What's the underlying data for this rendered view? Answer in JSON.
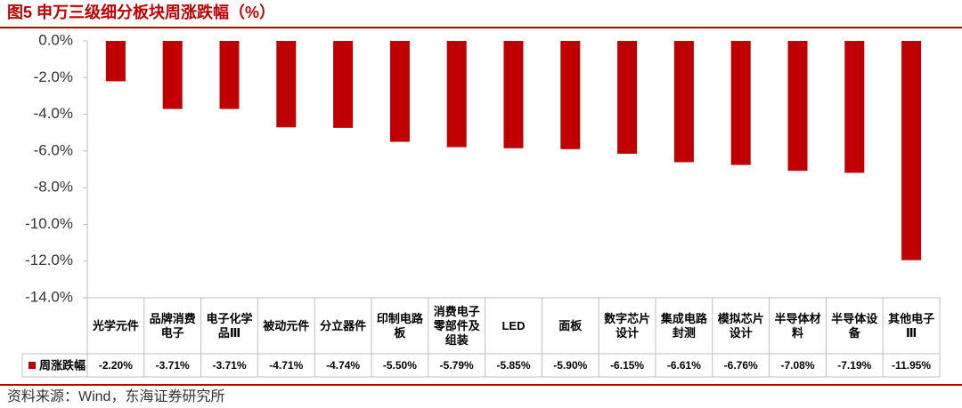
{
  "chart_data": {
    "type": "bar",
    "title": "图5 申万三级细分板块周涨跌幅（%）",
    "source": "资料来源：Wind，东海证券研究所",
    "categories": [
      "光学元件",
      "品牌消费电子",
      "电子化学品Ⅲ",
      "被动元件",
      "分立器件",
      "印制电路板",
      "消费电子零部件及组装",
      "LED",
      "面板",
      "数字芯片设计",
      "集成电路封测",
      "模拟芯片设计",
      "半导体材料",
      "半导体设备",
      "其他电子Ⅲ"
    ],
    "series": [
      {
        "name": "周涨跌幅",
        "color": "#c00000",
        "values": [
          -2.2,
          -3.71,
          -3.71,
          -4.71,
          -4.74,
          -5.5,
          -5.79,
          -5.85,
          -5.9,
          -6.15,
          -6.61,
          -6.76,
          -7.08,
          -7.19,
          -11.95
        ],
        "value_labels": [
          "-2.20%",
          "-3.71%",
          "-3.71%",
          "-4.71%",
          "-4.74%",
          "-5.50%",
          "-5.79%",
          "-5.85%",
          "-5.90%",
          "-6.15%",
          "-6.61%",
          "-6.76%",
          "-7.08%",
          "-7.19%",
          "-11.95%"
        ]
      }
    ],
    "ylim": [
      -14,
      0
    ],
    "yticks": [
      {
        "value": 0,
        "label": "0.0%"
      },
      {
        "value": -2,
        "label": "-2.0%"
      },
      {
        "value": -4,
        "label": "-4.0%"
      },
      {
        "value": -6,
        "label": "-6.0%"
      },
      {
        "value": -8,
        "label": "-8.0%"
      },
      {
        "value": -10,
        "label": "-10.0%"
      },
      {
        "value": -12,
        "label": "-12.0%"
      },
      {
        "value": -14,
        "label": "-14.0%"
      }
    ],
    "grid": false
  }
}
